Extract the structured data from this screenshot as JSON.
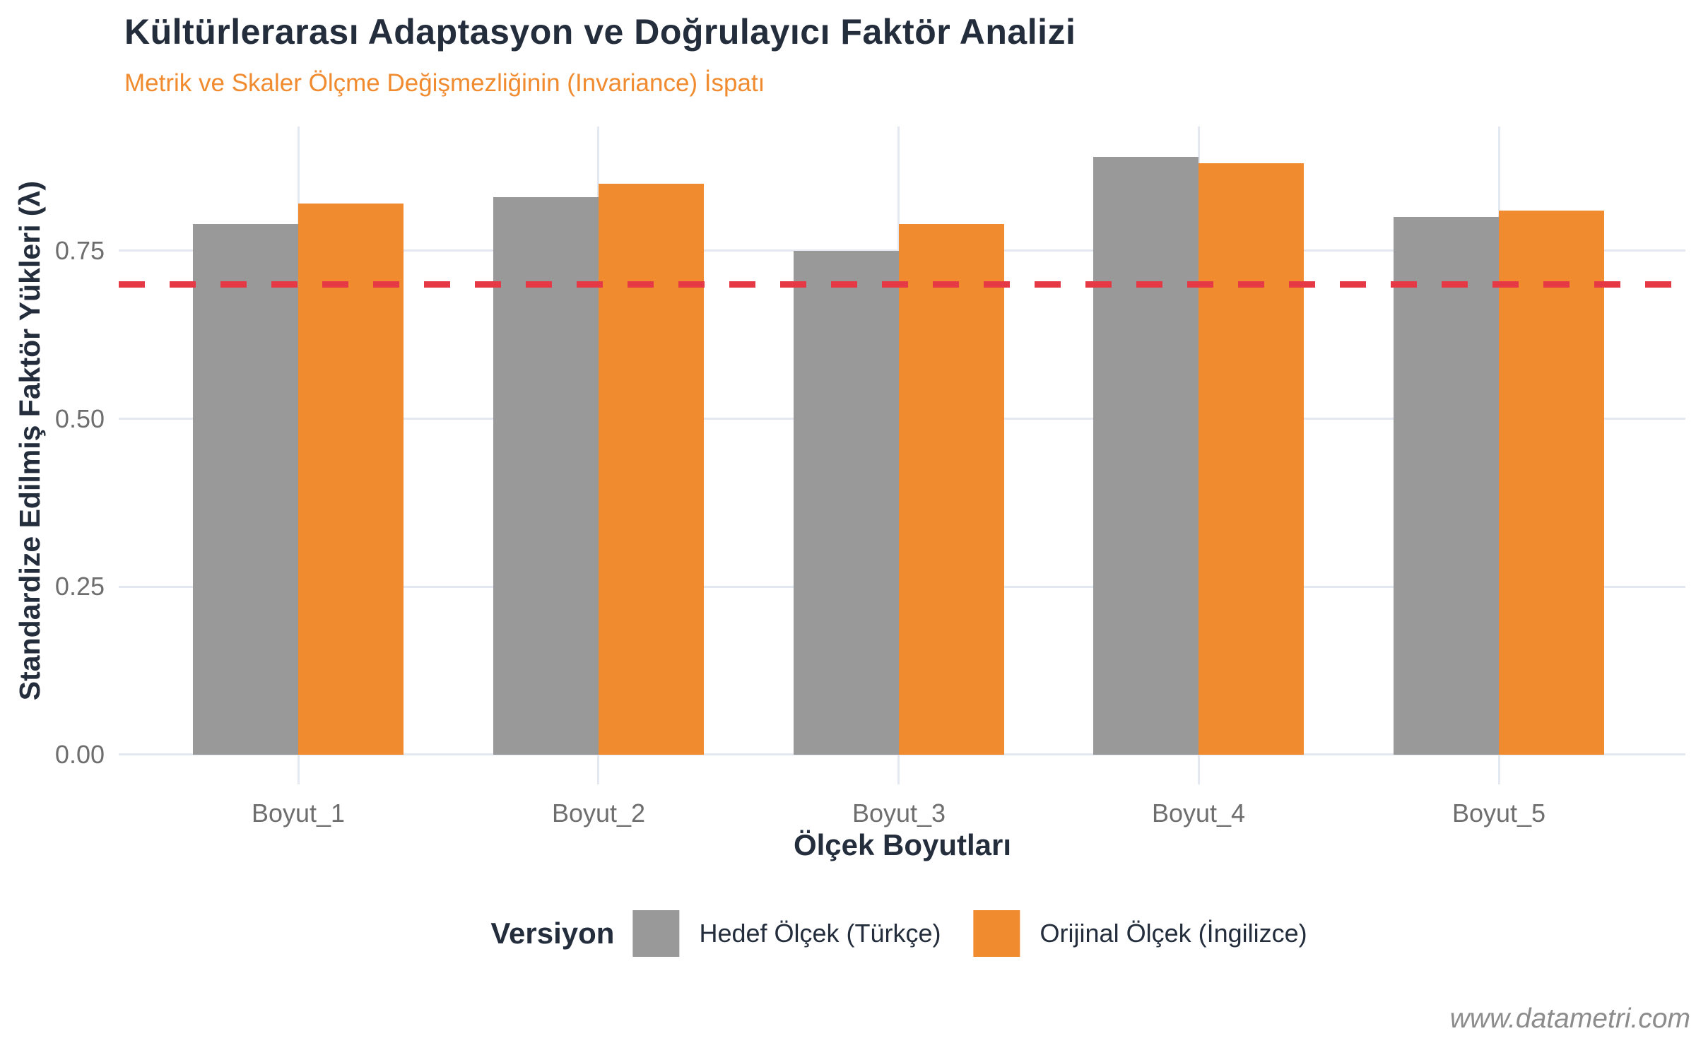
{
  "watermark": "www.datametri.com",
  "colors": {
    "title_text": "#232D3C",
    "subtitle_text": "#F18B2F",
    "tick_text": "#6E6E6E",
    "gridline": "#E4E9F1",
    "watermark_text": "#8C8C8C"
  },
  "chart_data": {
    "type": "bar",
    "title": "Kültürlerarası Adaptasyon ve Doğrulayıcı Faktör Analizi",
    "subtitle": "Metrik ve Skaler Ölçme Değişmezliğinin (Invariance) İspatı",
    "xlabel": "Ölçek Boyutları",
    "ylabel": "Standardize Edilmiş Faktör Yükleri (λ)",
    "categories": [
      "Boyut_1",
      "Boyut_2",
      "Boyut_3",
      "Boyut_4",
      "Boyut_5"
    ],
    "series": [
      {
        "name": "Hedef Ölçek (Türkçe)",
        "color": "#999999",
        "values": [
          0.79,
          0.83,
          0.75,
          0.89,
          0.8
        ]
      },
      {
        "name": "Orijinal Ölçek (İngilizce)",
        "color": "#F18B2F",
        "values": [
          0.82,
          0.85,
          0.79,
          0.88,
          0.81
        ]
      }
    ],
    "reference_line": {
      "value": 0.7,
      "color": "#E63946",
      "style": "dashed"
    },
    "y_ticks": [
      0.0,
      0.25,
      0.5,
      0.75
    ],
    "y_tick_labels": [
      "0.00",
      "0.25",
      "0.50",
      "0.75"
    ],
    "ylim": [
      0,
      0.935
    ],
    "grid": true,
    "legend_title": "Versiyon",
    "legend_position": "bottom"
  }
}
